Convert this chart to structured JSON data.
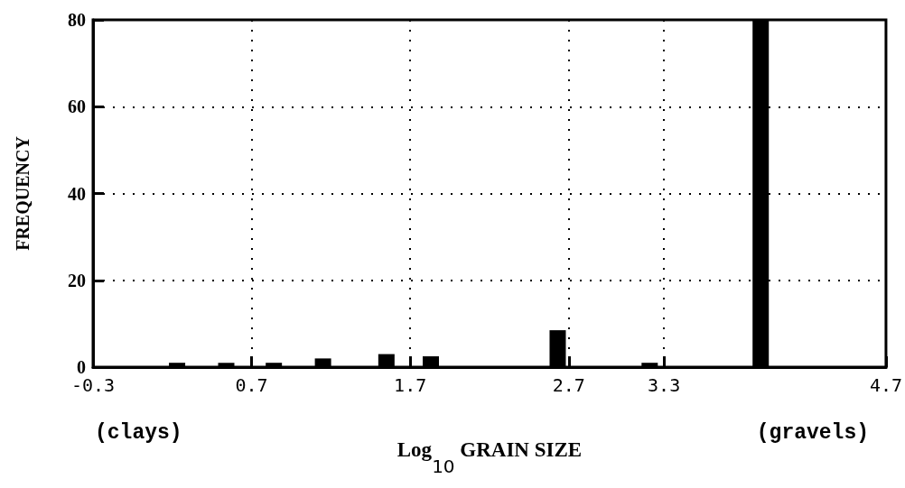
{
  "chart_data": {
    "type": "bar",
    "ylabel": "FREQUENCY",
    "xlabel": "Log$_{10}$ GRAIN SIZE",
    "annotations": [
      "(clays)",
      "(gravels)"
    ],
    "x": [
      0.23,
      0.54,
      0.84,
      1.15,
      1.55,
      1.83,
      2.63,
      3.21,
      3.91
    ],
    "values": [
      1,
      1,
      1,
      2,
      3,
      2.5,
      8.5,
      1,
      80
    ],
    "color": "#000000",
    "xlim": [
      -0.3,
      4.7
    ],
    "xticks": [
      -0.3,
      0.7,
      1.7,
      2.7,
      3.3,
      4.7
    ],
    "ylim": [
      0,
      80
    ],
    "yticks": [
      0,
      20,
      40,
      60,
      80
    ],
    "grid": true
  }
}
